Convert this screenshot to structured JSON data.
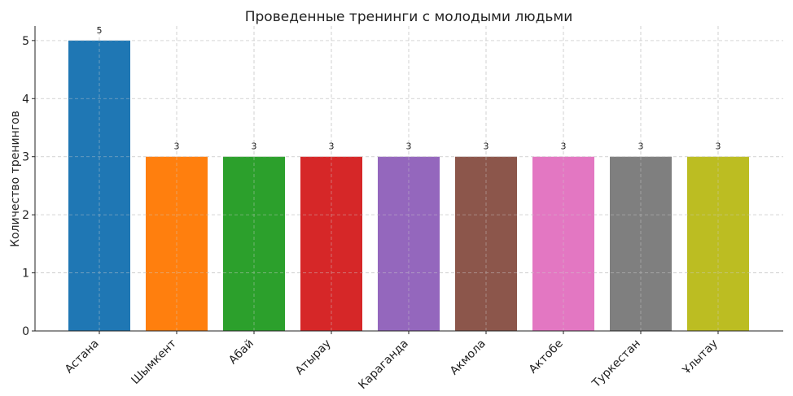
{
  "chart_data": {
    "type": "bar",
    "title": "Проведенные тренинги с молодыми людьми",
    "xlabel": "",
    "ylabel": "Количество тренингов",
    "categories": [
      "Астана",
      "Шымкент",
      "Абай",
      "Атырау",
      "Караганда",
      "Акмола",
      "Актобе",
      "Туркестан",
      "Ұлытау"
    ],
    "values": [
      5,
      3,
      3,
      3,
      3,
      3,
      3,
      3,
      3
    ],
    "data_labels": [
      "5",
      "3",
      "3",
      "3",
      "3",
      "3",
      "3",
      "3",
      "3"
    ],
    "colors": [
      "#1f77b4",
      "#ff7f0e",
      "#2ca02c",
      "#d62728",
      "#9467bd",
      "#8c564b",
      "#e377c2",
      "#7f7f7f",
      "#bcbd22"
    ],
    "ylim": [
      0,
      5.25
    ],
    "yticks": [
      "0",
      "1",
      "2",
      "3",
      "4",
      "5"
    ],
    "grid": true,
    "legend": "none"
  }
}
